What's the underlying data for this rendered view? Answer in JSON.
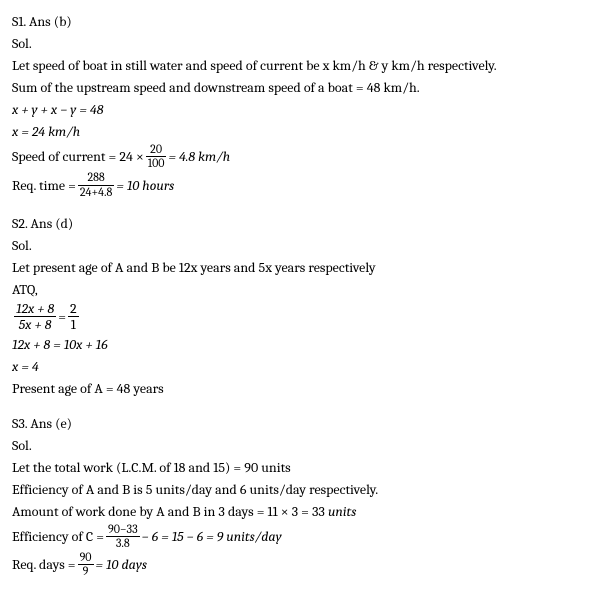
{
  "s1": {
    "header": "S1. Ans (b)",
    "sol_label": "Sol.",
    "line1": "Let speed of boat in still water and speed of current be x km/h & y km/h respectively.",
    "line2": "Sum of the upstream speed and downstream speed of a boat = 48 km/h.",
    "eq1": "x + y + x − y = 48",
    "eq2": "x = 24 km/h",
    "line3_pre": "Speed of current = 24 ×",
    "frac1_num": "20",
    "frac1_den": "100",
    "line3_post": " = 4.8 km/h",
    "line4_pre": "Req. time = ",
    "frac2_num": "288",
    "frac2_den": "24+4.8",
    "line4_post": " = 10 hours"
  },
  "s2": {
    "header": "S2. Ans (d)",
    "sol_label": "Sol.",
    "line1": "Let present age of A and B be 12x years and 5x years respectively",
    "line2": " ATQ,",
    "frac_left_num": "12x + 8",
    "frac_left_den": "5x + 8",
    "eq_mid": " = ",
    "frac_right_num": "2",
    "frac_right_den": "1",
    "eq2": "12x + 8 = 10x + 16",
    "eq3": "x = 4",
    "line3": "Present age of A = 48 years"
  },
  "s3": {
    "header": "S3. Ans (e)",
    "sol_label": "Sol.",
    "line1": "Let the total work (L.C.M. of 18 and 15) = 90 units",
    "line2": "Efficiency of A and B is 5 units/day and 6 units/day respectively.",
    "line3": "Amount of work done by A and B in 3 days = 11 × 3 = 33 units",
    "line4_pre": "Efficiency of C = ",
    "frac1_num": "90−33",
    "frac1_den": "3.8",
    "line4_post": " − 6 = 15 − 6 = 9 units/day",
    "line5_pre": "Req. days = ",
    "frac2_num": "90",
    "frac2_den": "9",
    "line5_post": " = 10 days"
  }
}
